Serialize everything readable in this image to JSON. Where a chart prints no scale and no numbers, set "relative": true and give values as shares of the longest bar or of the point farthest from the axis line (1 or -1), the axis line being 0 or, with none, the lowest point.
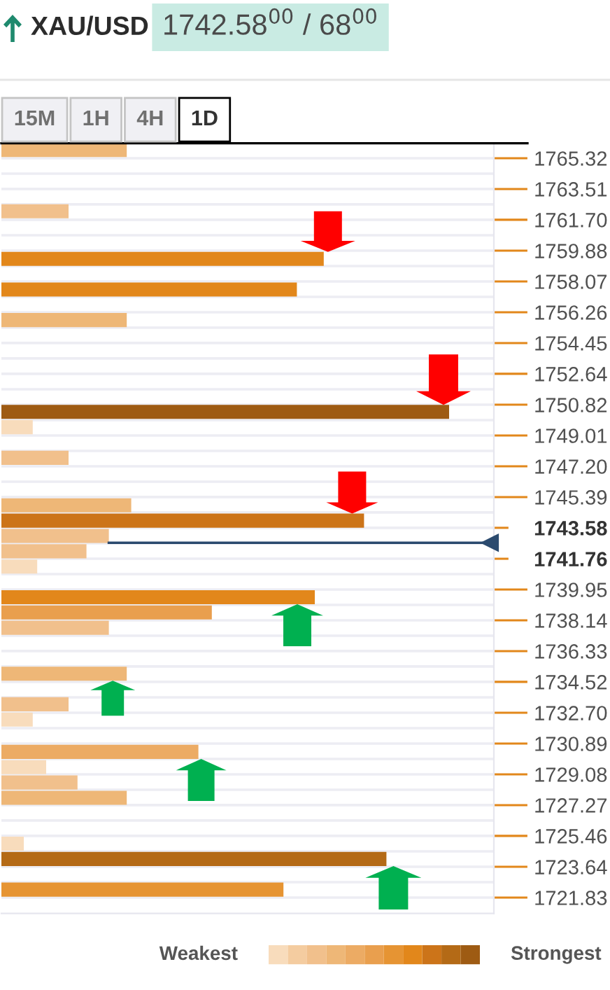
{
  "chart_data": [
    {
      "type": "bar",
      "orientation": "horizontal",
      "relative": true,
      "title": "XAU/USD",
      "subtitle": "1742.58$^{00}$ / 68$^{00}$",
      "x": [
        1765.8,
        1762.2,
        1759.4,
        1757.6,
        1755.8,
        1750.4,
        1749.5,
        1747.7,
        1744.9,
        1744.0,
        1743.1,
        1742.2,
        1741.3,
        1739.5,
        1738.6,
        1737.7,
        1735.0,
        1733.2,
        1732.3,
        1730.4,
        1729.5,
        1728.6,
        1727.7,
        1725.0,
        1724.1,
        1722.3
      ],
      "values": [
        0.28,
        0.15,
        0.72,
        0.66,
        0.28,
        1,
        0.07,
        0.15,
        0.29,
        0.81,
        0.24,
        0.19,
        0.08,
        0.7,
        0.47,
        0.24,
        0.28,
        0.15,
        0.07,
        0.44,
        0.1,
        0.17,
        0.28,
        0.05,
        0.86,
        0.63
      ],
      "colors": [
        "#eeb777",
        "#f1c08c",
        "#e2871b",
        "#e2871b",
        "#eeb777",
        "#9e5b13",
        "#f8dcbc",
        "#f1c08c",
        "#eeb777",
        "#cc7419",
        "#f1c08c",
        "#f1c08c",
        "#f8dcbc",
        "#e2871b",
        "#e99f4e",
        "#f1c08c",
        "#eeb777",
        "#f1c08c",
        "#f8dcbc",
        "#ecab64",
        "#f8dcbc",
        "#f1c08c",
        "#eeb777",
        "#f8dcbc",
        "#b46a16",
        "#e69433"
      ],
      "ylim": [
        1720.9,
        1766.2
      ],
      "yticks": [
        1765.32,
        1763.51,
        {
          "value": 1761.7,
          "label": "1761.70"
        },
        1759.88,
        1758.07,
        1756.26,
        1754.45,
        1752.64,
        1750.82,
        1749.01,
        {
          "value": 1747.2,
          "label": "1747.20"
        },
        1745.39,
        1743.58,
        1741.76,
        1739.95,
        1738.14,
        1736.33,
        1734.52,
        {
          "value": 1732.7,
          "label": "1732.70"
        },
        1730.89,
        1729.08,
        1727.27,
        1725.46,
        1723.64,
        1721.83
      ],
      "grid": "y",
      "tick_labels": "y",
      "ref_lines": [
        {
          "axis": "y",
          "value": 1742.7,
          "color": "#2b4a6e"
        }
      ],
      "annotations": [
        "15M",
        "1H",
        "4H",
        "1D"
      ]
    },
    {
      "type": "other",
      "colors": [
        "#f8dcbc",
        "#f4cca0",
        "#f1c08c",
        "#eeb777",
        "#ecab64",
        "#e99f4e",
        "#e69433",
        "#e2871b",
        "#cc7419",
        "#b46a16",
        "#9e5b13"
      ],
      "annotations": [
        "Weakest",
        "Strongest"
      ]
    }
  ]
}
